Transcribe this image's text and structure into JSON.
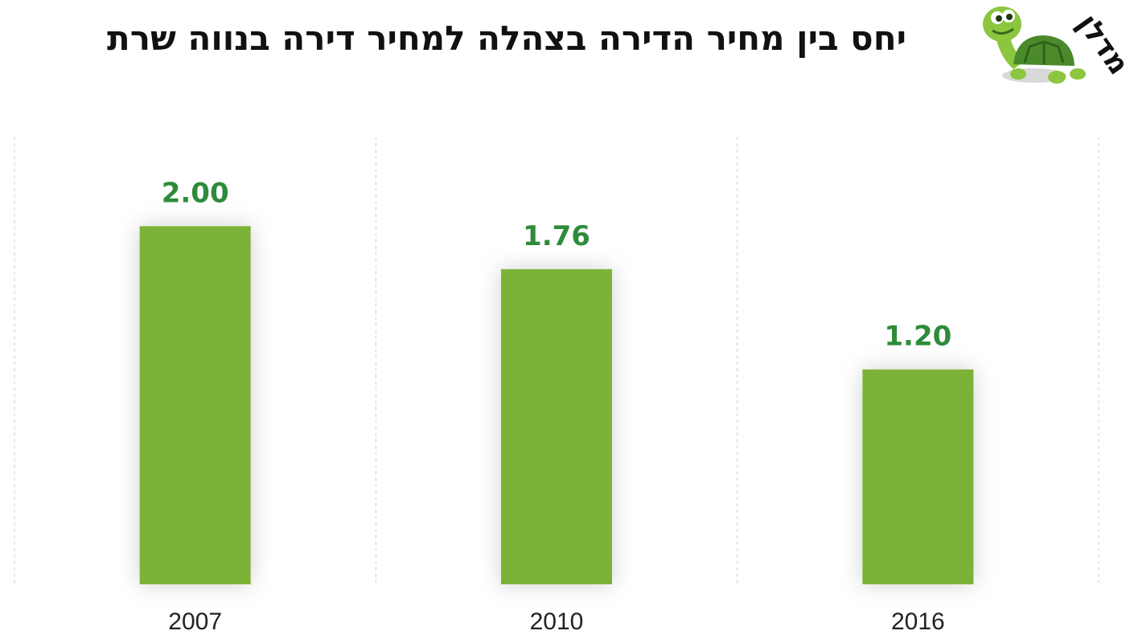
{
  "title": "יחס בין מחיר הדירה בצהלה למחיר דירה בנווה שרת",
  "logo": {
    "text": "מדלן",
    "icon": "turtle-icon"
  },
  "colors": {
    "bar": "#7db237",
    "label": "#2e8b3a",
    "grid": "#cfcfcf"
  },
  "chart_data": {
    "type": "bar",
    "title": "יחס בין מחיר הדירה בצהלה למחיר דירה בנווה שרת",
    "categories": [
      "2007",
      "2010",
      "2016"
    ],
    "values": [
      2.0,
      1.76,
      1.2
    ],
    "value_labels": [
      "2.00",
      "1.76",
      "1.20"
    ],
    "xlabel": "",
    "ylabel": "",
    "ylim": [
      0,
      2.5
    ],
    "grid": "vertical-dashed",
    "legend": "none"
  }
}
